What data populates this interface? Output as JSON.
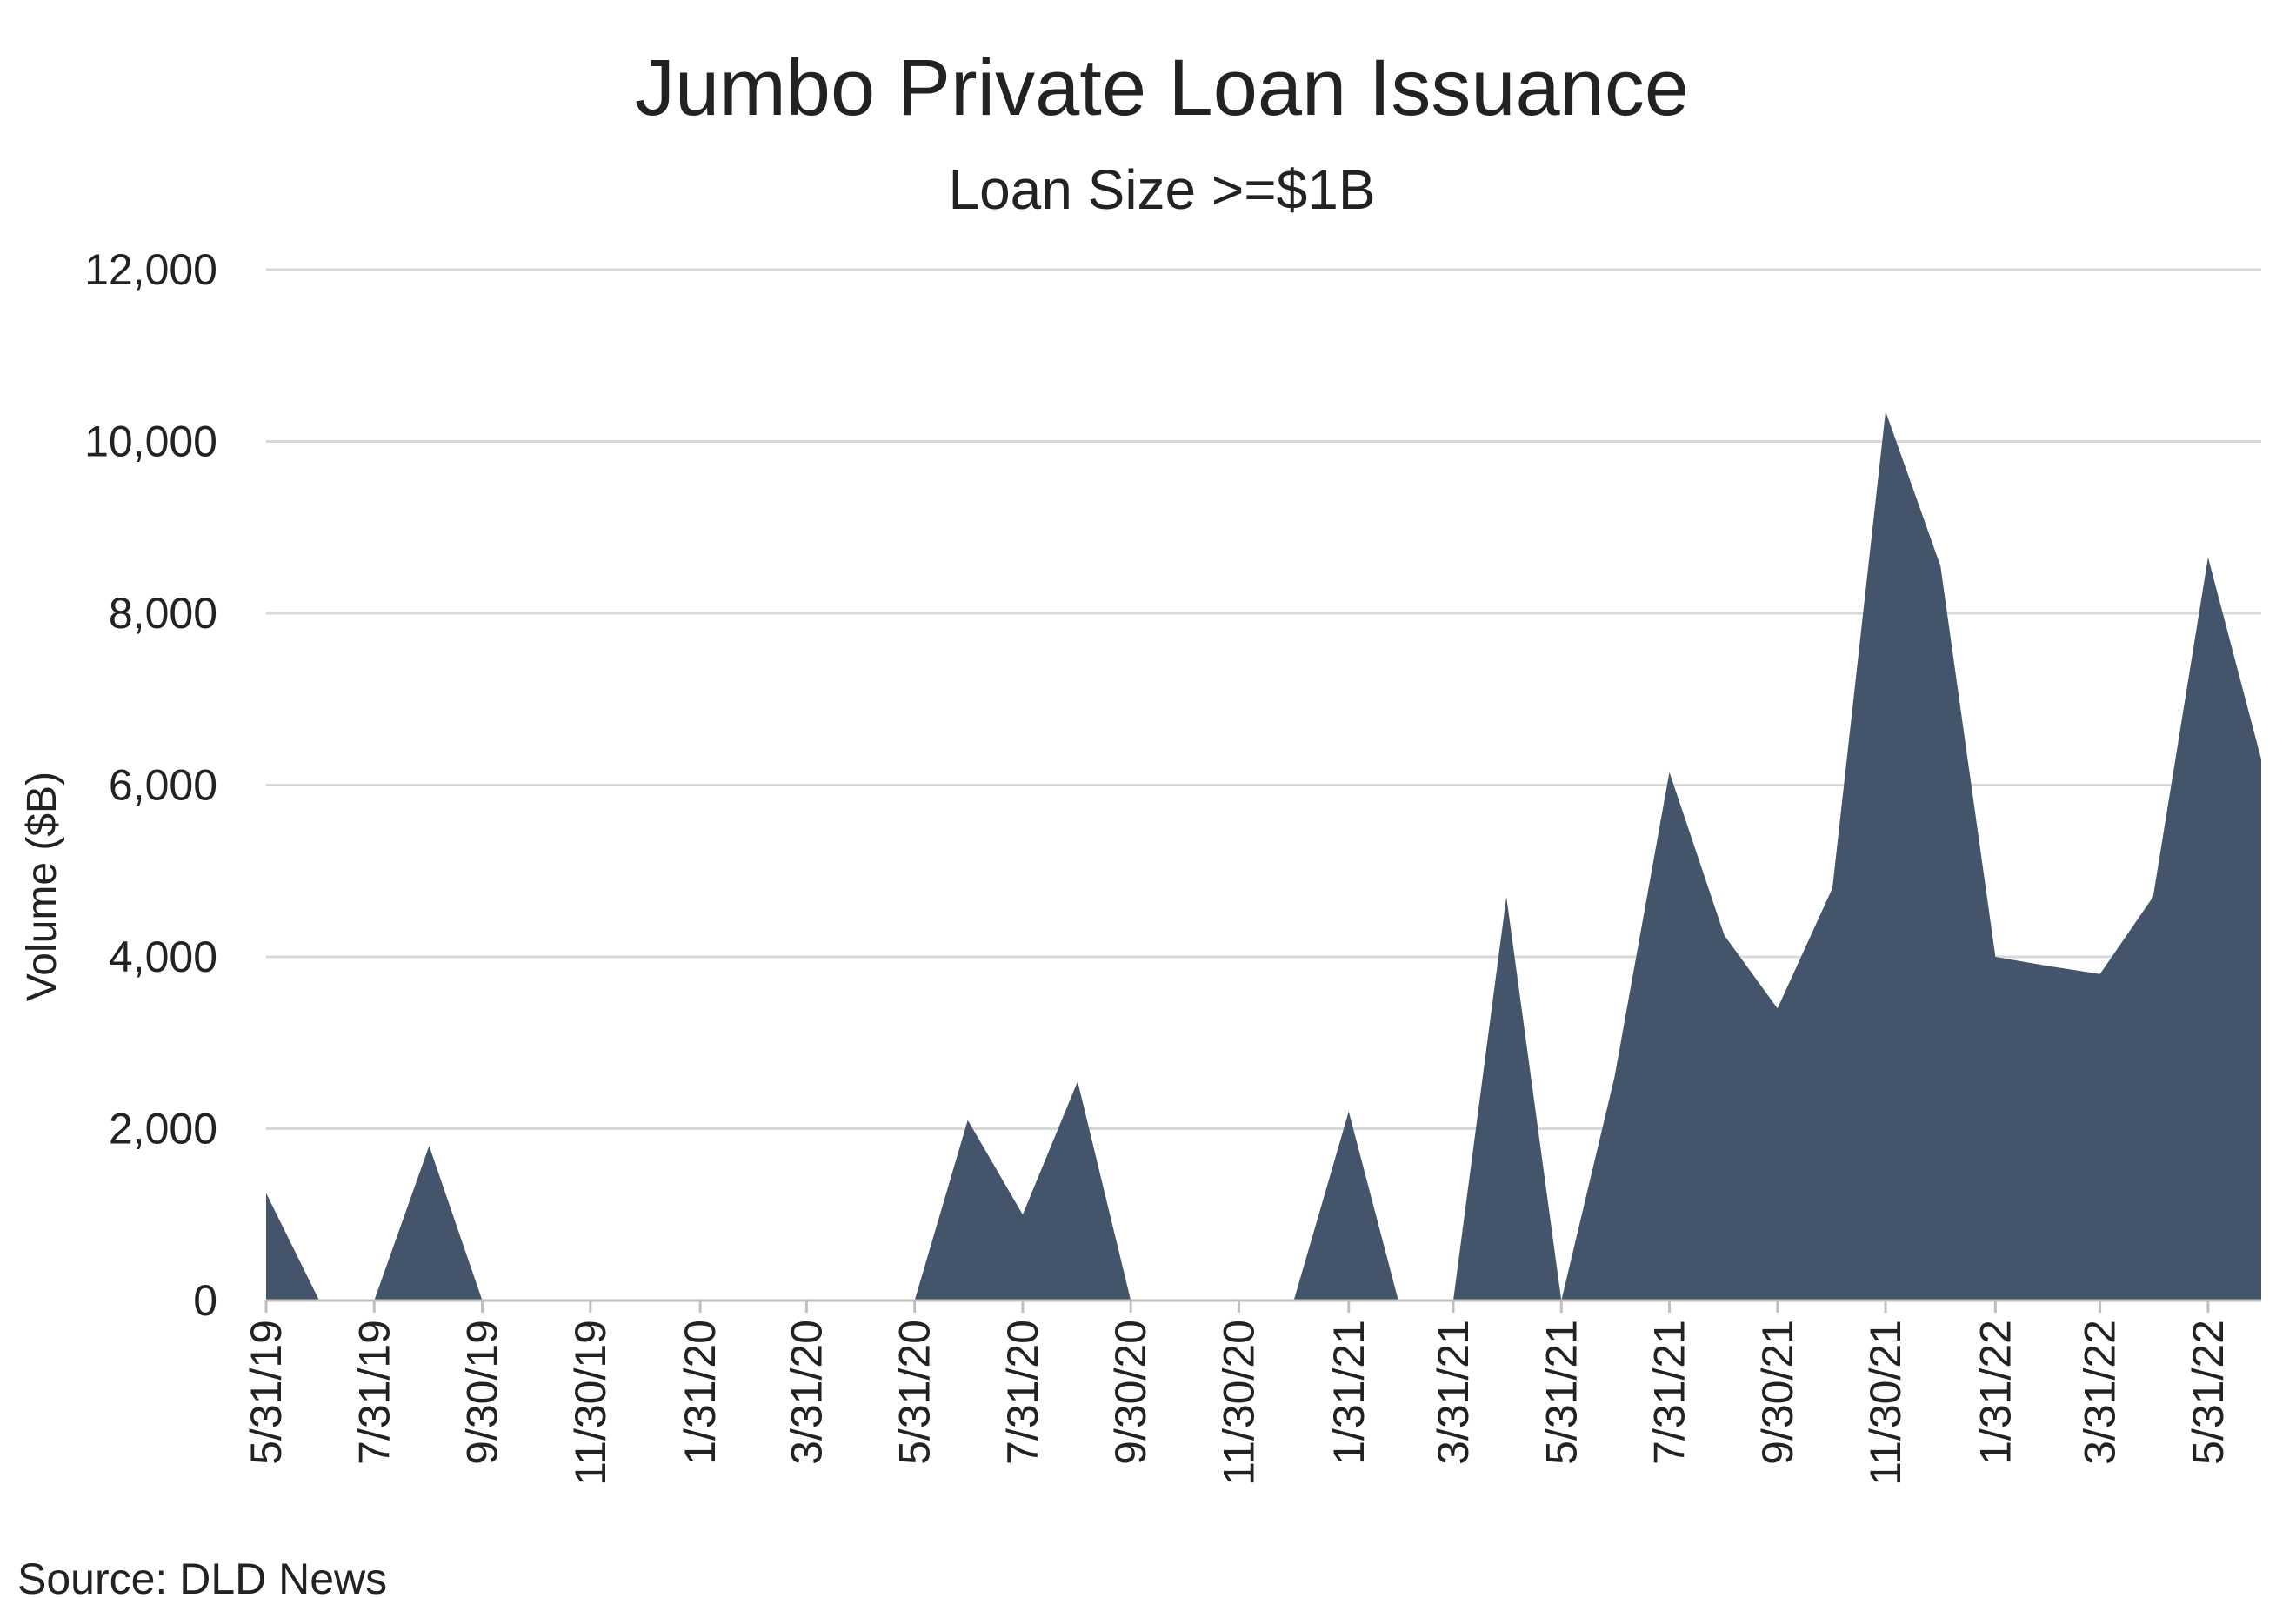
{
  "chart_data": {
    "type": "area",
    "title": "Jumbo Private Loan Issuance",
    "subtitle": "Loan Size >=$1B",
    "xlabel": "",
    "ylabel": "Volume ($B)",
    "source": "Source: DLD News",
    "ylim": [
      0,
      12000
    ],
    "y_ticks": [
      "0",
      "2,000",
      "4,000",
      "6,000",
      "8,000",
      "10,000",
      "12,000"
    ],
    "x_tick_labels": [
      "5/31/19",
      "7/31/19",
      "9/30/19",
      "11/30/19",
      "1/31/20",
      "3/31/20",
      "5/31/20",
      "7/31/20",
      "9/30/20",
      "11/30/20",
      "1/31/21",
      "3/31/21",
      "5/31/21",
      "7/31/21",
      "9/30/21",
      "11/30/21",
      "1/31/22",
      "3/31/22",
      "5/31/22"
    ],
    "grid": true,
    "legend": "none",
    "fill_color": "#44546A",
    "series": [
      {
        "x": [
          "5/31/19",
          "6/30/19",
          "7/31/19",
          "8/31/19",
          "9/30/19",
          "10/31/19",
          "11/30/19",
          "12/31/19",
          "1/31/20",
          "2/29/20",
          "3/31/20",
          "4/30/20",
          "5/31/20",
          "6/30/20",
          "7/31/20",
          "8/31/20",
          "9/30/20",
          "10/31/20",
          "11/30/20",
          "12/31/20",
          "1/31/21",
          "2/28/21",
          "3/31/21",
          "4/30/21",
          "5/31/21",
          "6/30/21",
          "7/31/21",
          "8/31/21",
          "9/30/21",
          "10/31/21",
          "11/30/21",
          "12/31/21",
          "1/31/22",
          "2/28/22",
          "3/31/22",
          "4/30/22",
          "5/31/22",
          "6/30/22"
        ],
        "values": [
          1250,
          0,
          0,
          1800,
          0,
          0,
          0,
          0,
          0,
          0,
          0,
          0,
          0,
          2100,
          1000,
          2550,
          0,
          0,
          0,
          0,
          2200,
          0,
          0,
          4700,
          0,
          2600,
          6150,
          4250,
          3400,
          4800,
          10350,
          8550,
          4000,
          3900,
          3800,
          4700,
          8650,
          6300
        ]
      }
    ]
  }
}
